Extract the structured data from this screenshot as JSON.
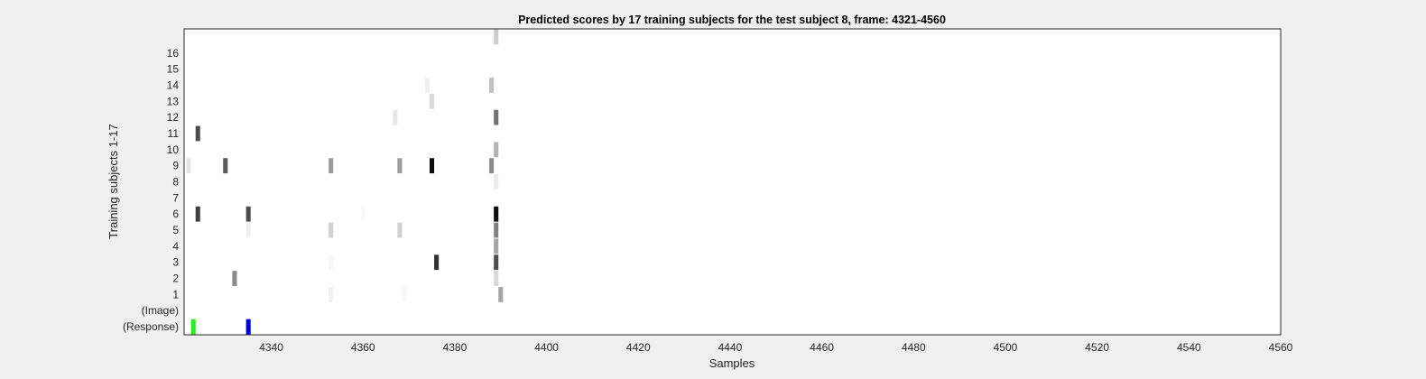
{
  "chart_data": {
    "type": "heatmap",
    "title": "Predicted scores by 17 training subjects for the test subject 8, frame: 4321-4560",
    "xlabel": "Samples",
    "ylabel": "Training subjects 1-17",
    "xlim": [
      4321,
      4560
    ],
    "x_ticks": [
      4340,
      4360,
      4380,
      4400,
      4420,
      4440,
      4460,
      4480,
      4500,
      4520,
      4540,
      4560
    ],
    "rows": [
      {
        "label": "(Response)",
        "index": -1
      },
      {
        "label": "(Image)",
        "index": 0
      },
      {
        "label": "1",
        "index": 1
      },
      {
        "label": "2",
        "index": 2
      },
      {
        "label": "3",
        "index": 3
      },
      {
        "label": "4",
        "index": 4
      },
      {
        "label": "5",
        "index": 5
      },
      {
        "label": "6",
        "index": 6
      },
      {
        "label": "7",
        "index": 7
      },
      {
        "label": "8",
        "index": 8
      },
      {
        "label": "9",
        "index": 9
      },
      {
        "label": "10",
        "index": 10
      },
      {
        "label": "11",
        "index": 11
      },
      {
        "label": "12",
        "index": 12
      },
      {
        "label": "13",
        "index": 13
      },
      {
        "label": "14",
        "index": 14
      },
      {
        "label": "15",
        "index": 15
      },
      {
        "label": "16",
        "index": 16
      },
      {
        "label": "",
        "index": 17
      }
    ],
    "cells": [
      {
        "row": -1,
        "x": 4323,
        "score": 1,
        "color": "#22ee22"
      },
      {
        "row": -1,
        "x": 4335,
        "score": 1,
        "color": "#0000dd"
      },
      {
        "row": 1,
        "x": 4353,
        "score": 0.05
      },
      {
        "row": 1,
        "x": 4369,
        "score": 0.03
      },
      {
        "row": 1,
        "x": 4390,
        "score": 0.35
      },
      {
        "row": 2,
        "x": 4332,
        "score": 0.45
      },
      {
        "row": 2,
        "x": 4389,
        "score": 0.15
      },
      {
        "row": 3,
        "x": 4353,
        "score": 0.03
      },
      {
        "row": 3,
        "x": 4376,
        "score": 0.8
      },
      {
        "row": 3,
        "x": 4389,
        "score": 0.7
      },
      {
        "row": 4,
        "x": 4389,
        "score": 0.35
      },
      {
        "row": 5,
        "x": 4335,
        "score": 0.06
      },
      {
        "row": 5,
        "x": 4353,
        "score": 0.18
      },
      {
        "row": 5,
        "x": 4368,
        "score": 0.18
      },
      {
        "row": 5,
        "x": 4389,
        "score": 0.5
      },
      {
        "row": 6,
        "x": 4324,
        "score": 0.75
      },
      {
        "row": 6,
        "x": 4335,
        "score": 0.7
      },
      {
        "row": 6,
        "x": 4360,
        "score": 0.02
      },
      {
        "row": 6,
        "x": 4389,
        "score": 0.95
      },
      {
        "row": 8,
        "x": 4389,
        "score": 0.08
      },
      {
        "row": 9,
        "x": 4322,
        "score": 0.1
      },
      {
        "row": 9,
        "x": 4330,
        "score": 0.65
      },
      {
        "row": 9,
        "x": 4353,
        "score": 0.4
      },
      {
        "row": 9,
        "x": 4368,
        "score": 0.38
      },
      {
        "row": 9,
        "x": 4375,
        "score": 0.95
      },
      {
        "row": 9,
        "x": 4388,
        "score": 0.45
      },
      {
        "row": 10,
        "x": 4389,
        "score": 0.3
      },
      {
        "row": 11,
        "x": 4324,
        "score": 0.7
      },
      {
        "row": 12,
        "x": 4367,
        "score": 0.1
      },
      {
        "row": 12,
        "x": 4389,
        "score": 0.55
      },
      {
        "row": 13,
        "x": 4375,
        "score": 0.15
      },
      {
        "row": 14,
        "x": 4374,
        "score": 0.06
      },
      {
        "row": 14,
        "x": 4388,
        "score": 0.25
      },
      {
        "row": 17,
        "x": 4389,
        "score": 0.2
      }
    ]
  }
}
